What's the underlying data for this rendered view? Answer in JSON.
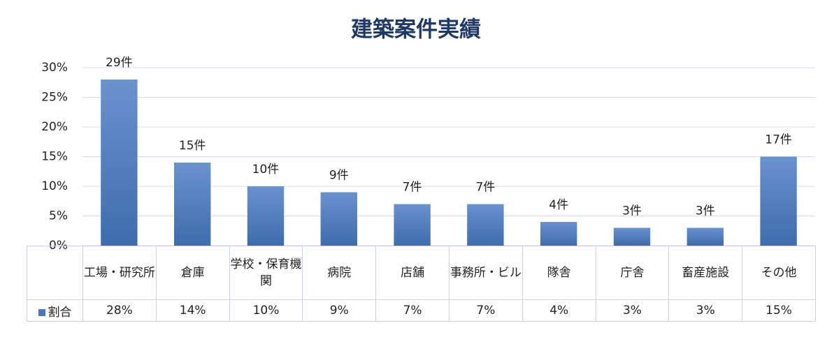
{
  "chart_data": {
    "type": "bar",
    "title": "建築案件実績",
    "categories": [
      "工場・研究所",
      "倉庫",
      "学校・保育機関",
      "病院",
      "店舗",
      "事務所・ビル",
      "隊舎",
      "庁舎",
      "畜産施設",
      "その他"
    ],
    "series": [
      {
        "name": "割合",
        "color": "#4a78bb",
        "values": [
          28,
          14,
          10,
          9,
          7,
          7,
          4,
          3,
          3,
          15
        ],
        "value_labels": [
          "28%",
          "14%",
          "10%",
          "9%",
          "7%",
          "7%",
          "4%",
          "3%",
          "3%",
          "15%"
        ]
      }
    ],
    "annotations": [
      "29件",
      "15件",
      "10件",
      "9件",
      "7件",
      "7件",
      "4件",
      "3件",
      "3件",
      "17件"
    ],
    "ylim": [
      0,
      30
    ],
    "yticks": [
      {
        "value": 0,
        "label": "0%"
      },
      {
        "value": 5,
        "label": "5%"
      },
      {
        "value": 10,
        "label": "10%"
      },
      {
        "value": 15,
        "label": "15%"
      },
      {
        "value": 20,
        "label": "20%"
      },
      {
        "value": 25,
        "label": "25%"
      },
      {
        "value": 30,
        "label": "30%"
      }
    ],
    "grid": true
  }
}
